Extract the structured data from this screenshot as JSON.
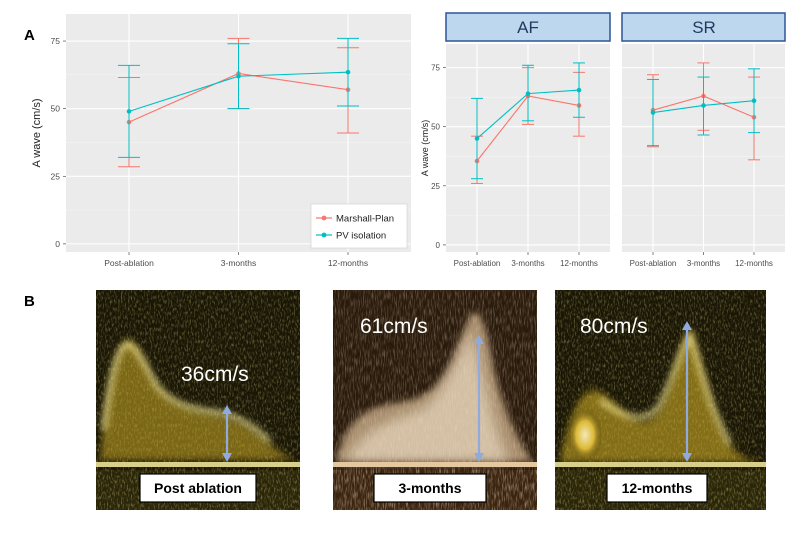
{
  "panels": {
    "a": "A",
    "b": "B"
  },
  "colors": {
    "marshall": "#F8766D",
    "pv": "#00BFC4",
    "panel_bg": "#EBEBEB",
    "strip_bg": "#BDD7EE",
    "strip_border": "#2F5597",
    "arrow": "#8FAADC"
  },
  "chart_data": [
    {
      "type": "line",
      "title": "",
      "xlabel": "",
      "ylabel": "A wave (cm/s)",
      "categories": [
        "Post-ablation",
        "3-months",
        "12-months"
      ],
      "ylim": [
        -3,
        85
      ],
      "yticks": [
        0,
        25,
        50,
        75
      ],
      "legend": {
        "position": "bottom-right",
        "entries": [
          "Marshall-Plan",
          "PV isolation"
        ]
      },
      "series": [
        {
          "name": "Marshall-Plan",
          "values": [
            45,
            63,
            57
          ],
          "lower": [
            28.5,
            50,
            41
          ],
          "upper": [
            61.5,
            76,
            72.5
          ]
        },
        {
          "name": "PV isolation",
          "values": [
            49,
            62,
            63.5
          ],
          "lower": [
            32,
            50,
            51
          ],
          "upper": [
            66,
            74,
            76
          ]
        }
      ]
    },
    {
      "type": "line",
      "facet": "AF",
      "ylabel": "A wave (cm/s)",
      "categories": [
        "Post-ablation",
        "3-months",
        "12-months"
      ],
      "ylim": [
        -3,
        85
      ],
      "yticks": [
        0,
        25,
        50,
        75
      ],
      "series": [
        {
          "name": "Marshall-Plan",
          "values": [
            35.5,
            63,
            59
          ],
          "lower": [
            26,
            51,
            46
          ],
          "upper": [
            46,
            75,
            73
          ]
        },
        {
          "name": "PV isolation",
          "values": [
            45,
            64,
            65.5
          ],
          "lower": [
            28,
            52.5,
            54
          ],
          "upper": [
            62,
            76,
            77
          ]
        }
      ]
    },
    {
      "type": "line",
      "facet": "SR",
      "categories": [
        "Post-ablation",
        "3-months",
        "12-months"
      ],
      "ylim": [
        -3,
        85
      ],
      "series": [
        {
          "name": "Marshall-Plan",
          "values": [
            57,
            63,
            54
          ],
          "lower": [
            41.5,
            48.5,
            36
          ],
          "upper": [
            72,
            77,
            71
          ]
        },
        {
          "name": "PV isolation",
          "values": [
            56,
            59,
            61
          ],
          "lower": [
            42,
            46.5,
            47.5
          ],
          "upper": [
            70,
            71,
            74.5
          ]
        }
      ]
    }
  ],
  "doppler": [
    {
      "speed": "36cm/s",
      "caption": "Post ablation"
    },
    {
      "speed": "61cm/s",
      "caption": "3-months"
    },
    {
      "speed": "80cm/s",
      "caption": "12-months"
    }
  ]
}
